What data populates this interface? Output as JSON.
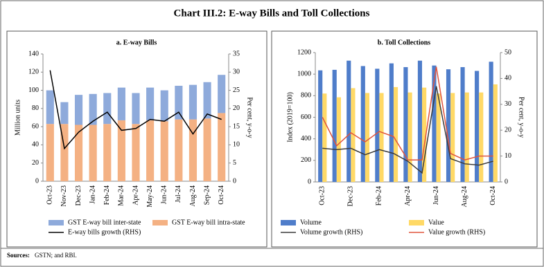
{
  "title": "Chart III.2: E-way Bills and Toll Collections",
  "sources_label": "Sources:",
  "sources_text": "GSTN; and RBI.",
  "chart_data": [
    {
      "type": "bar",
      "stacked": true,
      "title": "a. E-way Bills",
      "y_label": "Million units",
      "y2_label": "Per cent, y-o-y",
      "categories": [
        "Oct-23",
        "Nov-23",
        "Dec-23",
        "Jan-24",
        "Feb-24",
        "Mar-24",
        "Apr-24",
        "May-24",
        "Jun-24",
        "Jul-24",
        "Aug-24",
        "Sep-24",
        "Oct-24"
      ],
      "ylim": [
        0,
        140
      ],
      "yticks": [
        0,
        20,
        40,
        60,
        80,
        100,
        120,
        140
      ],
      "y2lim": [
        0,
        35
      ],
      "y2ticks": [
        0,
        5,
        10,
        15,
        20,
        25,
        30,
        35
      ],
      "legend": "bottom",
      "series": [
        {
          "name": "GST E-way bill intra-state",
          "color": "#f4b183",
          "values": [
            63,
            63,
            62,
            62,
            63,
            67,
            63,
            67,
            66,
            68,
            68,
            69,
            75
          ]
        },
        {
          "name": "GST E-way bill inter-state",
          "color": "#8eaadb",
          "values": [
            37,
            24,
            33,
            34,
            34,
            36,
            34,
            36,
            34,
            37,
            38,
            40,
            42
          ]
        },
        {
          "name": "E-way bills growth (RHS)",
          "color": "#000000",
          "type": "line",
          "axis": "y2",
          "values": [
            30.5,
            9,
            13.5,
            16.5,
            19,
            14,
            14.5,
            17,
            16.5,
            19,
            13,
            18.5,
            17
          ]
        }
      ]
    },
    {
      "type": "bar",
      "stacked": false,
      "title": "b. Toll Collections",
      "y_label": "Index (2019=100)",
      "y2_label": "Per cent, y-o-y",
      "categories": [
        "Oct-23",
        null,
        "Dec-23",
        null,
        "Feb-24",
        null,
        "Apr-24",
        null,
        "Jun-24",
        null,
        "Aug-24",
        null,
        "Oct-24"
      ],
      "ylim": [
        0,
        1200
      ],
      "yticks": [
        0,
        200,
        400,
        600,
        800,
        1000,
        1200
      ],
      "y2lim": [
        0,
        50
      ],
      "y2ticks": [
        0,
        10,
        20,
        30,
        40,
        50
      ],
      "legend": "bottom",
      "series": [
        {
          "name": "Volume",
          "color": "#4f7dca",
          "values": [
            1035,
            1040,
            1125,
            1075,
            1050,
            1100,
            1065,
            1125,
            1080,
            1045,
            1065,
            1030,
            1115
          ]
        },
        {
          "name": "Value",
          "color": "#ffd966",
          "values": [
            820,
            785,
            870,
            825,
            825,
            880,
            830,
            875,
            820,
            825,
            830,
            830,
            905
          ]
        },
        {
          "name": "Volume growth (RHS)",
          "color": "#3a3a3a",
          "type": "line",
          "axis": "y2",
          "values": [
            13,
            12.5,
            13,
            10.5,
            12.5,
            11,
            8,
            3.5,
            37,
            9,
            7,
            6.5,
            8
          ]
        },
        {
          "name": "Value growth (RHS)",
          "color": "#e0533c",
          "type": "line",
          "axis": "y2",
          "values": [
            25,
            14,
            19,
            15.5,
            19.5,
            17.5,
            8.5,
            8.5,
            44.5,
            11,
            8.5,
            10,
            10
          ]
        }
      ]
    }
  ]
}
